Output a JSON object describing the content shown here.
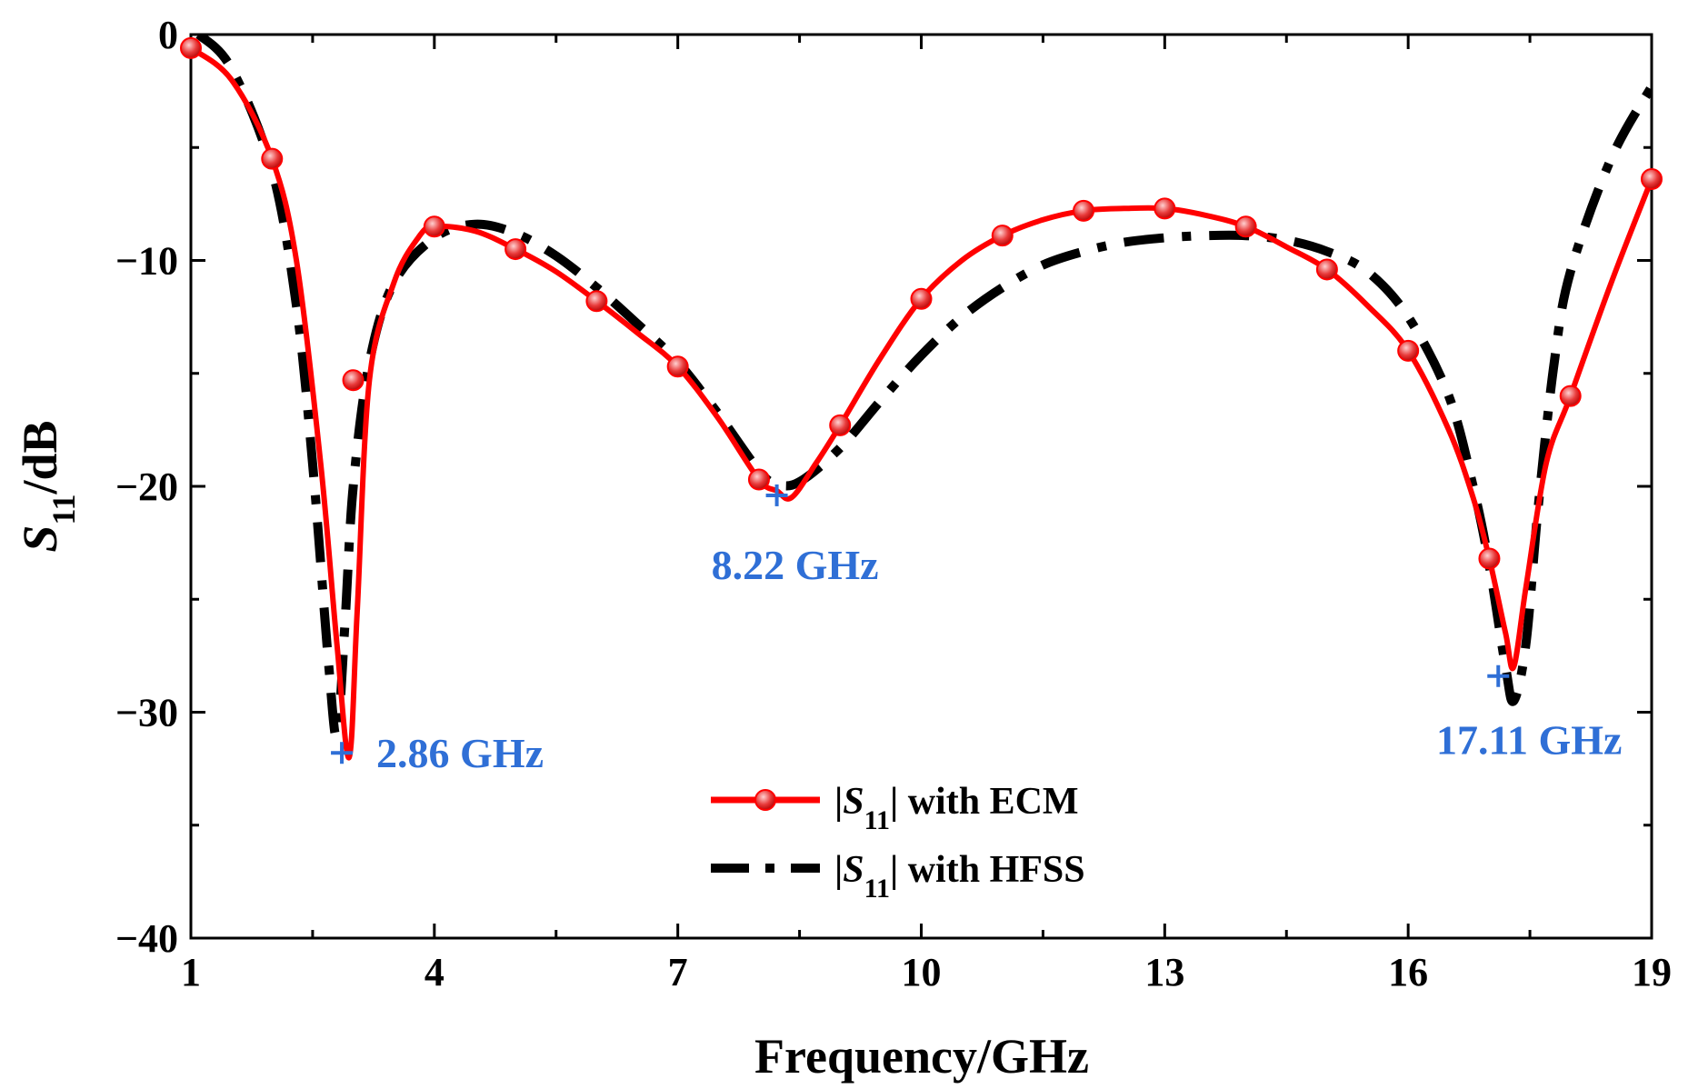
{
  "chart_data": {
    "type": "line",
    "xlabel": "Frequency/GHz",
    "ylabel": {
      "italic": "S",
      "sub": "11",
      "rest": "/dB"
    },
    "xlim": [
      1,
      19
    ],
    "ylim": [
      -40,
      0
    ],
    "xticks": [
      "1",
      "4",
      "7",
      "10",
      "13",
      "16",
      "19"
    ],
    "xtick_values": [
      1,
      4,
      7,
      10,
      13,
      16,
      19
    ],
    "yticks": [
      "0",
      "−10",
      "−20",
      "−30",
      "−40"
    ],
    "ytick_values": [
      0,
      -10,
      -20,
      -30,
      -40
    ],
    "grid": false,
    "legend_position": "bottom-center",
    "series": [
      {
        "name": "|S11| with ECM",
        "legend_label": {
          "pre": "|",
          "italic": "S",
          "sub": "11",
          "post": "| with ECM"
        },
        "color": "#ff0000",
        "marker_color": "#e02020",
        "style": "solid-with-circle-markers",
        "x": [
          1.0,
          1.5,
          2.0,
          2.3,
          2.6,
          2.8,
          2.95,
          3.05,
          3.2,
          3.5,
          3.8,
          4.0,
          4.5,
          5.0,
          5.5,
          6.0,
          6.5,
          7.0,
          7.5,
          8.0,
          8.22,
          8.4,
          8.7,
          9.0,
          9.5,
          10.0,
          10.5,
          11.0,
          11.5,
          12.0,
          12.5,
          13.0,
          13.5,
          14.0,
          14.5,
          15.0,
          15.5,
          16.0,
          16.5,
          16.8,
          17.0,
          17.2,
          17.3,
          17.45,
          17.7,
          18.0,
          18.5,
          19.0
        ],
        "y": [
          -0.6,
          -2.0,
          -5.5,
          -10.0,
          -19.0,
          -27.0,
          -32.0,
          -25.5,
          -15.3,
          -11.0,
          -9.0,
          -8.5,
          -8.7,
          -9.5,
          -10.5,
          -11.8,
          -13.2,
          -14.7,
          -17.0,
          -19.7,
          -20.2,
          -20.5,
          -19.0,
          -17.3,
          -14.3,
          -11.7,
          -10.0,
          -8.9,
          -8.2,
          -7.8,
          -7.7,
          -7.7,
          -8.0,
          -8.5,
          -9.4,
          -10.4,
          -12.0,
          -14.0,
          -17.5,
          -20.5,
          -23.2,
          -26.5,
          -28.0,
          -24.5,
          -19.0,
          -16.0,
          -11.0,
          -6.4
        ],
        "markers_x": [
          1,
          2,
          3,
          4,
          5,
          6,
          7,
          8,
          9,
          10,
          11,
          12,
          13,
          14,
          15,
          16,
          17,
          18,
          19
        ],
        "markers_y": [
          -0.6,
          -5.5,
          -15.3,
          -8.5,
          -9.5,
          -11.8,
          -14.7,
          -19.7,
          -17.3,
          -11.7,
          -8.9,
          -7.8,
          -7.7,
          -8.5,
          -10.4,
          -14.0,
          -23.2,
          -16.0,
          -6.4
        ]
      },
      {
        "name": "|S11| with HFSS",
        "legend_label": {
          "pre": "|",
          "italic": "S",
          "sub": "11",
          "post": "| with HFSS"
        },
        "color": "#000000",
        "style": "dash-dot",
        "x": [
          1.1,
          1.5,
          2.0,
          2.3,
          2.5,
          2.7,
          2.8,
          2.9,
          3.0,
          3.2,
          3.5,
          4.0,
          4.5,
          5.0,
          5.5,
          6.0,
          6.5,
          7.0,
          7.5,
          8.0,
          8.22,
          8.5,
          9.0,
          9.5,
          10.0,
          10.5,
          11.0,
          11.5,
          12.0,
          12.5,
          13.0,
          13.5,
          14.0,
          14.5,
          15.0,
          15.5,
          16.0,
          16.5,
          16.8,
          17.0,
          17.2,
          17.3,
          17.45,
          17.6,
          17.8,
          18.0,
          18.5,
          19.0
        ],
        "y": [
          0.0,
          -1.5,
          -6.0,
          -12.0,
          -19.0,
          -28.0,
          -31.0,
          -26.0,
          -20.0,
          -14.5,
          -11.0,
          -9.0,
          -8.4,
          -8.8,
          -9.8,
          -11.2,
          -12.8,
          -14.5,
          -16.8,
          -19.3,
          -19.9,
          -19.8,
          -18.3,
          -16.2,
          -14.2,
          -12.5,
          -11.2,
          -10.2,
          -9.6,
          -9.2,
          -9.0,
          -8.9,
          -8.9,
          -9.1,
          -9.6,
          -10.5,
          -12.5,
          -16.0,
          -20.0,
          -23.5,
          -28.0,
          -29.5,
          -27.0,
          -21.0,
          -14.5,
          -10.5,
          -5.5,
          -2.3
        ]
      }
    ],
    "annotations": [
      {
        "text": "2.86 GHz",
        "x": 2.86,
        "y": -31.8,
        "color": "#2f6fd6"
      },
      {
        "text": "8.22 GHz",
        "x": 8.22,
        "y": -20.4,
        "color": "#2f6fd6"
      },
      {
        "text": "17.11 GHz",
        "x": 17.11,
        "y": -28.4,
        "color": "#2f6fd6"
      }
    ]
  }
}
